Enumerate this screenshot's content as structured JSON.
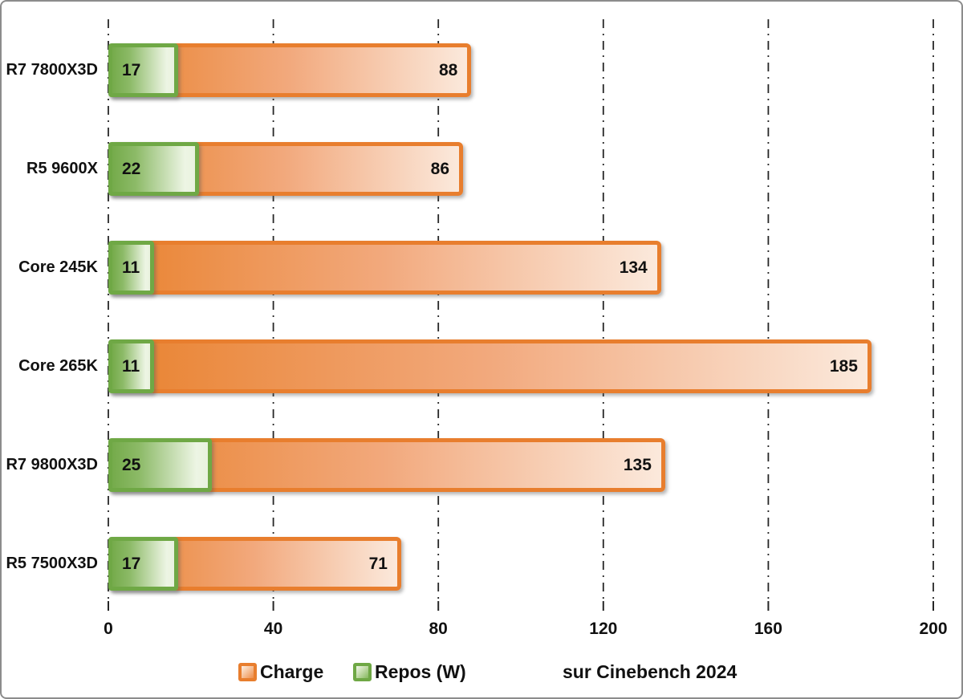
{
  "chart_data": {
    "type": "bar",
    "orientation": "horizontal",
    "categories": [
      "R7 7800X3D",
      "R5 9600X",
      "Core 245K",
      "Core 265K",
      "R7 9800X3D",
      "R5 7500X3D"
    ],
    "series": [
      {
        "name": "Charge",
        "color": "#e87e2e",
        "values": [
          88,
          86,
          134,
          185,
          135,
          71
        ]
      },
      {
        "name": "Repos (W)",
        "color": "#6fa845",
        "values": [
          17,
          22,
          11,
          11,
          25,
          17
        ]
      }
    ],
    "xlim": [
      0,
      200
    ],
    "x_ticks": [
      0,
      40,
      80,
      120,
      160,
      200
    ],
    "grid": "vertical dash-dot gridlines, on",
    "legend_position": "bottom",
    "annotation": "sur Cinebench 2024",
    "value_labels": "shown inside bar ends"
  },
  "colors": {
    "charge_border": "#e87e2e",
    "charge_fill_start": "#e98330",
    "charge_fill_end": "#fbe9dc",
    "repos_border": "#6fa845",
    "repos_fill_start": "#75ab4b",
    "repos_fill_end": "#e9f2df",
    "gridline": "#262626",
    "text": "#111111",
    "frame_border": "#8c8c8c",
    "background": "#ffffff"
  }
}
